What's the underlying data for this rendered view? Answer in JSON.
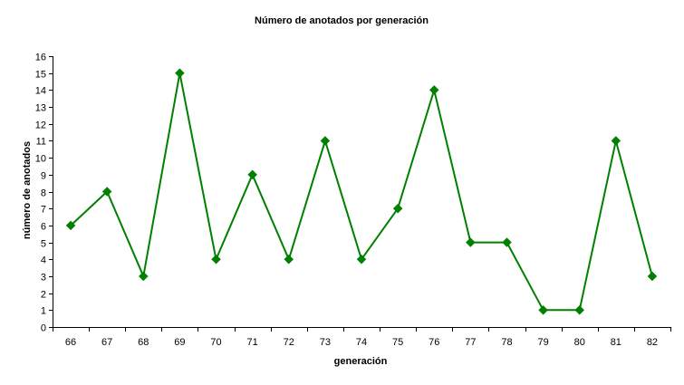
{
  "chart_data": {
    "type": "line",
    "title": "Número de anotados por generación",
    "xlabel": "generación",
    "ylabel": "número de anotados",
    "categories": [
      "66",
      "67",
      "68",
      "69",
      "70",
      "71",
      "72",
      "73",
      "74",
      "75",
      "76",
      "77",
      "78",
      "79",
      "80",
      "81",
      "82"
    ],
    "series": [
      {
        "values": [
          6,
          8,
          3,
          15,
          4,
          9,
          4,
          11,
          4,
          7,
          14,
          5,
          5,
          1,
          1,
          11,
          3
        ],
        "color": "#008000",
        "marker": "diamond"
      }
    ],
    "ylim": [
      0,
      16
    ],
    "yticks": [
      0,
      1,
      2,
      3,
      4,
      5,
      6,
      7,
      8,
      9,
      10,
      11,
      12,
      13,
      14,
      15,
      16
    ],
    "grid": false,
    "legend": "none"
  }
}
